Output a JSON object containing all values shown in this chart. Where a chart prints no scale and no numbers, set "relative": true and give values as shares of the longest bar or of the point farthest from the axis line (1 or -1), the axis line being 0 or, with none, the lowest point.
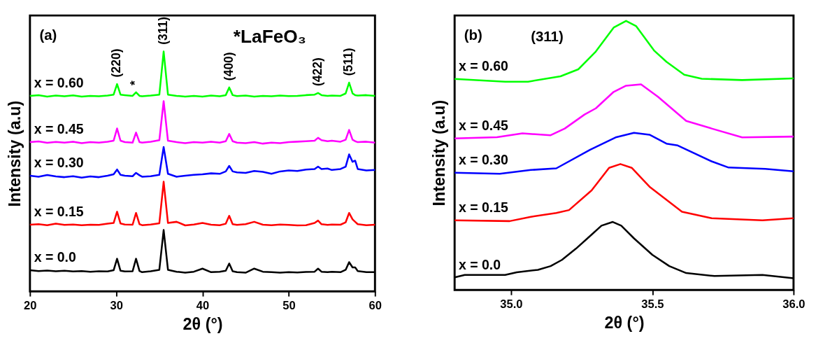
{
  "chart_data": [
    {
      "type": "line",
      "relative": true,
      "xlabel": "2θ (°)",
      "ylabel": "Intensity (a.u)",
      "xlim": [
        20,
        60
      ],
      "xticks": [
        20,
        30,
        40,
        50,
        60
      ],
      "tick_labels": "x",
      "grid": false,
      "legend": false,
      "marker": "none",
      "line_style": "solid",
      "annotations": [
        "(a)",
        "*LaFeO₃",
        {
          "text": "(220)",
          "x": 30.1,
          "y": 0.864
        },
        {
          "text": "*",
          "x": 32.3,
          "y": 0.83
        },
        {
          "text": "(311)",
          "x": 35.5,
          "y": 1.0
        },
        {
          "text": "(400)",
          "x": 43.1,
          "y": 0.85
        },
        {
          "text": "(422)",
          "x": 53.4,
          "y": 0.827
        },
        {
          "text": "(511)",
          "x": 57.0,
          "y": 0.87
        }
      ],
      "x": [
        20,
        21,
        22,
        23,
        24,
        25,
        26,
        27,
        28,
        29,
        29.7,
        30.1,
        30.5,
        31,
        31.9,
        32.3,
        32.7,
        33,
        34,
        35,
        35.5,
        36,
        37,
        38,
        39,
        40,
        41,
        42,
        42.7,
        43.1,
        43.5,
        44,
        45,
        46,
        47,
        48,
        49,
        50,
        51,
        52,
        53,
        53.4,
        53.8,
        54.5,
        55,
        56,
        56.6,
        57,
        57.4,
        57.7,
        58,
        59,
        60
      ],
      "series": [
        {
          "name": "x = 0.60",
          "color": "#00ff00",
          "values": [
            0.815,
            0.818,
            0.812,
            0.816,
            0.813,
            0.817,
            0.812,
            0.815,
            0.813,
            0.816,
            0.82,
            0.864,
            0.82,
            0.818,
            0.815,
            0.83,
            0.815,
            0.813,
            0.816,
            0.82,
            1.0,
            0.82,
            0.815,
            0.812,
            0.815,
            0.812,
            0.816,
            0.813,
            0.818,
            0.85,
            0.818,
            0.814,
            0.816,
            0.812,
            0.815,
            0.813,
            0.816,
            0.814,
            0.815,
            0.818,
            0.82,
            0.827,
            0.818,
            0.815,
            0.816,
            0.815,
            0.825,
            0.87,
            0.825,
            0.818,
            0.816,
            0.818,
            0.815
          ]
        },
        {
          "name": "x = 0.45",
          "color": "#ff00ff",
          "values": [
            0.622,
            0.625,
            0.619,
            0.623,
            0.62,
            0.624,
            0.618,
            0.622,
            0.62,
            0.624,
            0.628,
            0.679,
            0.628,
            0.622,
            0.62,
            0.662,
            0.622,
            0.62,
            0.624,
            0.63,
            0.793,
            0.628,
            0.622,
            0.618,
            0.622,
            0.62,
            0.624,
            0.62,
            0.626,
            0.656,
            0.626,
            0.62,
            0.618,
            0.622,
            0.616,
            0.62,
            0.618,
            0.622,
            0.624,
            0.626,
            0.628,
            0.64,
            0.63,
            0.626,
            0.628,
            0.624,
            0.632,
            0.673,
            0.632,
            0.626,
            0.622,
            0.624,
            0.62
          ]
        },
        {
          "name": "x = 0.30",
          "color": "#0000ff",
          "values": [
            0.482,
            0.478,
            0.485,
            0.479,
            0.476,
            0.48,
            0.474,
            0.479,
            0.476,
            0.482,
            0.488,
            0.508,
            0.486,
            0.482,
            0.48,
            0.494,
            0.484,
            0.478,
            0.48,
            0.486,
            0.602,
            0.49,
            0.478,
            0.482,
            0.486,
            0.488,
            0.492,
            0.49,
            0.5,
            0.523,
            0.5,
            0.496,
            0.494,
            0.502,
            0.498,
            0.49,
            0.5,
            0.504,
            0.502,
            0.508,
            0.51,
            0.52,
            0.51,
            0.512,
            0.506,
            0.51,
            0.52,
            0.571,
            0.54,
            0.545,
            0.51,
            0.504,
            0.506
          ]
        },
        {
          "name": "x = 0.15",
          "color": "#ff0000",
          "values": [
            0.278,
            0.28,
            0.276,
            0.282,
            0.277,
            0.279,
            0.276,
            0.278,
            0.277,
            0.282,
            0.285,
            0.332,
            0.283,
            0.279,
            0.278,
            0.327,
            0.28,
            0.276,
            0.279,
            0.284,
            0.457,
            0.285,
            0.29,
            0.275,
            0.279,
            0.285,
            0.278,
            0.276,
            0.282,
            0.315,
            0.28,
            0.277,
            0.28,
            0.29,
            0.278,
            0.276,
            0.279,
            0.277,
            0.275,
            0.276,
            0.285,
            0.295,
            0.28,
            0.277,
            0.279,
            0.278,
            0.288,
            0.327,
            0.3,
            0.29,
            0.28,
            0.276,
            0.278
          ]
        },
        {
          "name": "x = 0.0",
          "color": "#000000",
          "values": [
            0.088,
            0.085,
            0.087,
            0.084,
            0.086,
            0.083,
            0.085,
            0.082,
            0.084,
            0.083,
            0.088,
            0.136,
            0.086,
            0.083,
            0.084,
            0.136,
            0.085,
            0.08,
            0.084,
            0.09,
            0.256,
            0.09,
            0.082,
            0.078,
            0.082,
            0.095,
            0.08,
            0.082,
            0.086,
            0.116,
            0.084,
            0.08,
            0.078,
            0.095,
            0.082,
            0.08,
            0.078,
            0.08,
            0.079,
            0.081,
            0.082,
            0.095,
            0.082,
            0.08,
            0.082,
            0.08,
            0.09,
            0.122,
            0.1,
            0.1,
            0.085,
            0.08,
            0.08
          ]
        }
      ]
    },
    {
      "type": "line",
      "relative": true,
      "xlabel": "2θ (°)",
      "ylabel": "Intensity (a.u)",
      "xlim": [
        34.8,
        36.0
      ],
      "xticks": [
        {
          "value": 35,
          "label": "35.0"
        },
        35.5,
        {
          "value": 36,
          "label": "36.0"
        }
      ],
      "tick_labels": "x",
      "grid": false,
      "legend": false,
      "marker": "none",
      "line_style": "solid",
      "annotations": [
        "(b)",
        "(311)"
      ],
      "series": [
        {
          "name": "x = 0.60",
          "color": "#00ff00",
          "x": [
            34.8,
            34.979,
            35.06,
            35.175,
            35.238,
            35.3,
            35.363,
            35.407,
            35.443,
            35.506,
            35.55,
            35.613,
            35.675,
            35.818,
            36.0
          ],
          "values": [
            0.784,
            0.774,
            0.774,
            0.794,
            0.82,
            0.886,
            0.975,
            1.0,
            0.98,
            0.89,
            0.848,
            0.8,
            0.785,
            0.78,
            0.786
          ]
        },
        {
          "name": "x = 0.45",
          "color": "#ff00ff",
          "x": [
            34.8,
            34.95,
            35.04,
            35.14,
            35.19,
            35.26,
            35.3,
            35.363,
            35.407,
            35.46,
            35.52,
            35.62,
            35.71,
            35.818,
            36.0
          ],
          "values": [
            0.563,
            0.568,
            0.582,
            0.575,
            0.6,
            0.652,
            0.675,
            0.736,
            0.759,
            0.764,
            0.718,
            0.628,
            0.6,
            0.567,
            0.57
          ]
        },
        {
          "name": "x = 0.30",
          "color": "#0000ff",
          "x": [
            34.8,
            34.96,
            35.07,
            35.16,
            35.28,
            35.37,
            35.435,
            35.49,
            35.55,
            35.59,
            35.71,
            35.77,
            35.9,
            36.0
          ],
          "values": [
            0.436,
            0.432,
            0.446,
            0.452,
            0.521,
            0.567,
            0.584,
            0.577,
            0.544,
            0.537,
            0.478,
            0.455,
            0.45,
            0.441
          ]
        },
        {
          "name": "x = 0.15",
          "color": "#ff0000",
          "x": [
            34.8,
            34.995,
            35.07,
            35.16,
            35.205,
            35.285,
            35.347,
            35.387,
            35.427,
            35.49,
            35.605,
            35.71,
            35.89,
            36.0
          ],
          "values": [
            0.259,
            0.256,
            0.272,
            0.286,
            0.297,
            0.37,
            0.454,
            0.468,
            0.454,
            0.384,
            0.291,
            0.267,
            0.259,
            0.267
          ]
        },
        {
          "name": "x = 0.0",
          "color": "#000000",
          "x": [
            34.8,
            34.836,
            34.979,
            35.02,
            35.095,
            35.14,
            35.18,
            35.23,
            35.28,
            35.32,
            35.36,
            35.39,
            35.435,
            35.5,
            35.56,
            35.62,
            35.72,
            35.89,
            36.0
          ],
          "values": [
            0.047,
            0.056,
            0.056,
            0.066,
            0.075,
            0.089,
            0.112,
            0.154,
            0.201,
            0.239,
            0.253,
            0.239,
            0.192,
            0.131,
            0.089,
            0.063,
            0.052,
            0.056,
            0.044
          ]
        }
      ]
    }
  ]
}
